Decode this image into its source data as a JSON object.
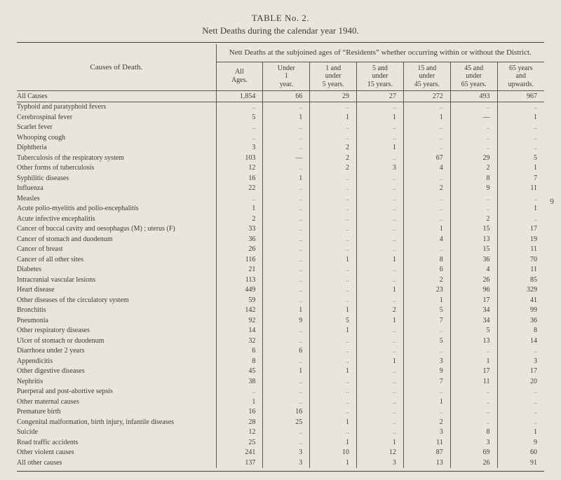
{
  "title_number": "TABLE No. 2.",
  "title_desc": "Nett Deaths during the calendar year 1940.",
  "side_page_num": "9",
  "super_header_left": "Causes of Death.",
  "super_header_right": "Nett Deaths at the subjoined ages of “Residents” whether occurring within or without the District.",
  "columns": [
    {
      "l1": "All",
      "l2": "Ages."
    },
    {
      "l1": "Under",
      "l2": "1",
      "l3": "year."
    },
    {
      "l1": "1 and",
      "l2": "under",
      "l3": "5 years."
    },
    {
      "l1": "5 and",
      "l2": "under",
      "l3": "15 years."
    },
    {
      "l1": "15 and",
      "l2": "under",
      "l3": "45 years."
    },
    {
      "l1": "45 and",
      "l2": "under",
      "l3": "65 years."
    },
    {
      "l1": "65 years",
      "l2": "and",
      "l3": "upwards."
    }
  ],
  "all_causes_label": "All Causes",
  "all_causes": [
    "1,854",
    "66",
    "29",
    "27",
    "272",
    "493",
    "967"
  ],
  "rows": [
    {
      "cause": "Typhoid and paratyphoid fevers",
      "v": [
        "..",
        "..",
        "..",
        "..",
        "..",
        "..",
        ".."
      ]
    },
    {
      "cause": "Cerebrospinal fever",
      "v": [
        "5",
        "1",
        "1",
        "1",
        "1",
        "—",
        "1"
      ]
    },
    {
      "cause": "Scarlet fever",
      "v": [
        "..",
        "..",
        "..",
        "..",
        "..",
        "..",
        ".."
      ]
    },
    {
      "cause": "Whooping cough",
      "v": [
        "..",
        "..",
        "..",
        "..",
        "..",
        "..",
        ".."
      ]
    },
    {
      "cause": "Diphtheria",
      "v": [
        "3",
        "..",
        "2",
        "1",
        "..",
        "..",
        ".."
      ]
    },
    {
      "cause": "Tuberculosis of the respiratory system",
      "v": [
        "103",
        "—",
        "2",
        "..",
        "67",
        "29",
        "5"
      ]
    },
    {
      "cause": "Other forms of tuberculosis",
      "v": [
        "12",
        "..",
        "2",
        "3",
        "4",
        "2",
        "1"
      ]
    },
    {
      "cause": "Syphilitic diseases",
      "v": [
        "16",
        "1",
        "..",
        "..",
        "..",
        "8",
        "7"
      ]
    },
    {
      "cause": "Influenza",
      "v": [
        "22",
        "..",
        "..",
        "..",
        "2",
        "9",
        "11"
      ]
    },
    {
      "cause": "Measles",
      "v": [
        "..",
        "..",
        "..",
        "..",
        "..",
        "..",
        ".."
      ]
    },
    {
      "cause": "Acute polio-myelitis and polio-encephalitis",
      "v": [
        "1",
        "..",
        "..",
        "..",
        "..",
        "..",
        "1"
      ]
    },
    {
      "cause": "Acute infective encephalitis",
      "v": [
        "2",
        "..",
        "..",
        "..",
        "..",
        "2",
        ".."
      ]
    },
    {
      "cause": "Cancer of buccal cavity and oesophagus (M) ; uterus (F)",
      "v": [
        "33",
        "..",
        "..",
        "..",
        "1",
        "15",
        "17"
      ]
    },
    {
      "cause": "Cancer of stomach and duodenum",
      "v": [
        "36",
        "..",
        "..",
        "..",
        "4",
        "13",
        "19"
      ]
    },
    {
      "cause": "Cancer of breast",
      "v": [
        "26",
        "..",
        "..",
        "..",
        "..",
        "15",
        "11"
      ]
    },
    {
      "cause": "Cancer of all other sites",
      "v": [
        "116",
        "..",
        "1",
        "1",
        "8",
        "36",
        "70"
      ]
    },
    {
      "cause": "Diabetes",
      "v": [
        "21",
        "..",
        "..",
        "..",
        "6",
        "4",
        "11"
      ]
    },
    {
      "cause": "Intracranial vascular lesions",
      "v": [
        "113",
        "..",
        "..",
        "..",
        "2",
        "26",
        "85"
      ]
    },
    {
      "cause": "Heart disease",
      "v": [
        "449",
        "..",
        "..",
        "1",
        "23",
        "96",
        "329"
      ]
    },
    {
      "cause": "Other diseases of the circulatory system",
      "v": [
        "59",
        "..",
        "..",
        "..",
        "1",
        "17",
        "41"
      ]
    },
    {
      "cause": "Bronchitis",
      "v": [
        "142",
        "1",
        "1",
        "2",
        "5",
        "34",
        "99"
      ]
    },
    {
      "cause": "Pneumonia",
      "v": [
        "92",
        "9",
        "5",
        "1",
        "7",
        "34",
        "36"
      ]
    },
    {
      "cause": "Other respiratory diseases",
      "v": [
        "14",
        "..",
        "1",
        "..",
        "..",
        "5",
        "8"
      ]
    },
    {
      "cause": "Ulcer of stomach or duodenum",
      "v": [
        "32",
        "..",
        "..",
        "..",
        "5",
        "13",
        "14"
      ]
    },
    {
      "cause": "Diarrhoea under 2 years",
      "v": [
        "6",
        "6",
        "..",
        "..",
        "..",
        "..",
        ".."
      ]
    },
    {
      "cause": "Appendicitis",
      "v": [
        "8",
        "..",
        "..",
        "1",
        "3",
        "1",
        "3"
      ]
    },
    {
      "cause": "Other digestive diseases",
      "v": [
        "45",
        "1",
        "1",
        "..",
        "9",
        "17",
        "17"
      ]
    },
    {
      "cause": "Nephritis",
      "v": [
        "38",
        "..",
        "..",
        "..",
        "7",
        "11",
        "20"
      ]
    },
    {
      "cause": "Puerperal and post-abortive sepsis",
      "v": [
        "..",
        "..",
        "..",
        "..",
        "..",
        "..",
        ".."
      ]
    },
    {
      "cause": "Other maternal causes",
      "v": [
        "1",
        "..",
        "..",
        "..",
        "1",
        "..",
        ".."
      ]
    },
    {
      "cause": "Premature birth",
      "v": [
        "16",
        "16",
        "..",
        "..",
        "..",
        "..",
        ".."
      ]
    },
    {
      "cause": "Congenital malformation, birth injury, infantile diseases",
      "v": [
        "28",
        "25",
        "1",
        "..",
        "2",
        "..",
        ".."
      ]
    },
    {
      "cause": "Suicide",
      "v": [
        "12",
        "..",
        "..",
        "..",
        "3",
        "8",
        "1"
      ]
    },
    {
      "cause": "Road traffic accidents",
      "v": [
        "25",
        "..",
        "1",
        "1",
        "11",
        "3",
        "9"
      ]
    },
    {
      "cause": "Other violent causes",
      "v": [
        "241",
        "3",
        "10",
        "12",
        "87",
        "69",
        "60"
      ]
    },
    {
      "cause": "All other causes",
      "v": [
        "137",
        "3",
        "1",
        "3",
        "13",
        "26",
        "91"
      ]
    }
  ],
  "colors": {
    "background": "#e8e6dc",
    "text": "#3a3a3a",
    "rule": "#555555"
  }
}
